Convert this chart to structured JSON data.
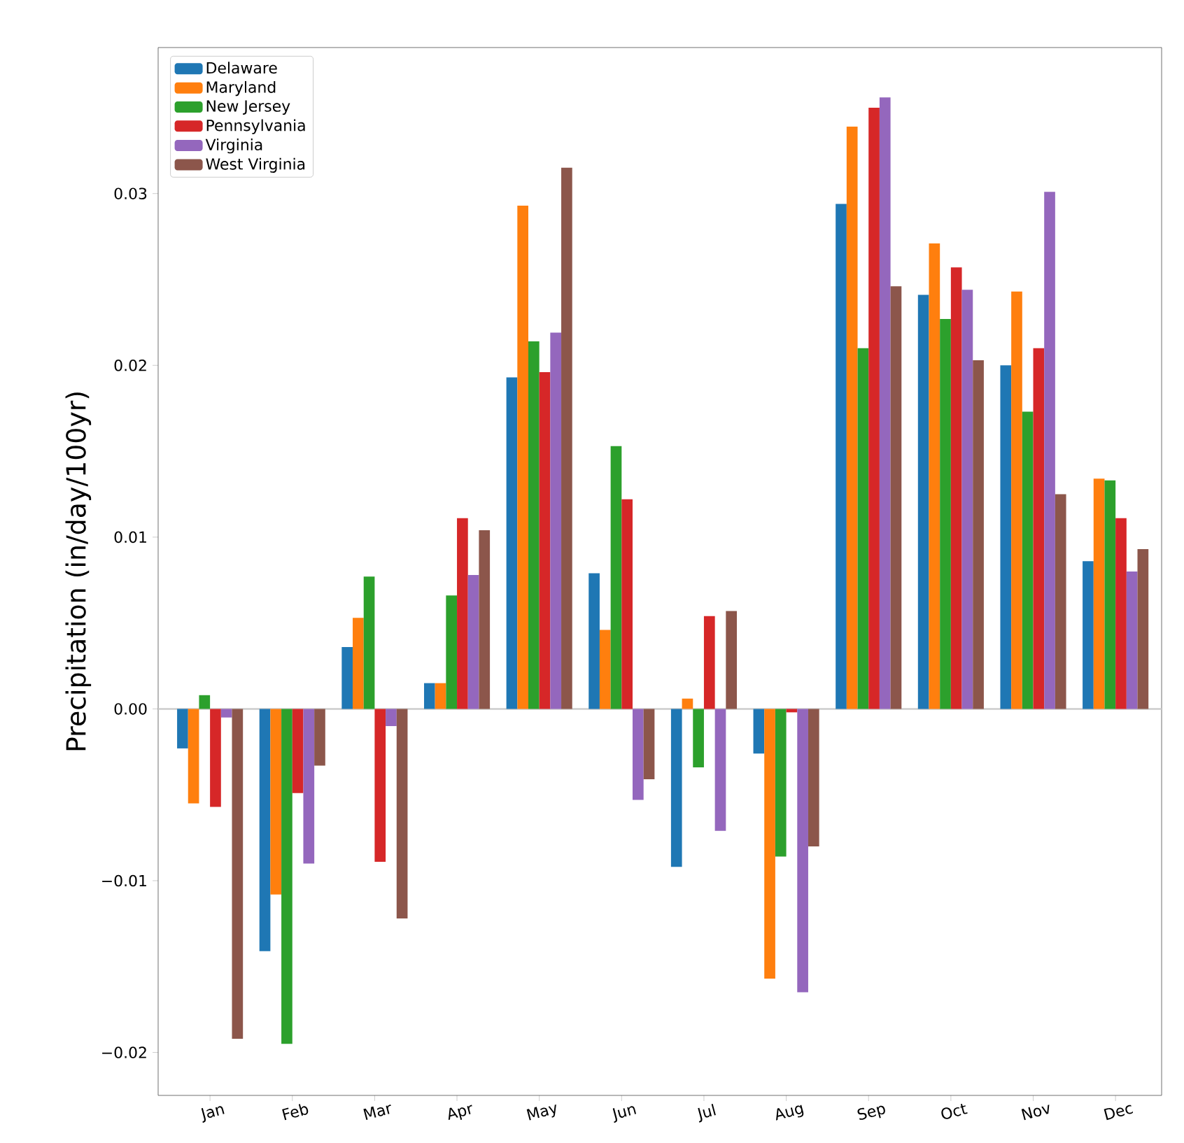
{
  "chart_data": {
    "type": "bar",
    "ylabel": "Precipitation (in/day/100yr)",
    "categories": [
      "Jan",
      "Feb",
      "Mar",
      "Apr",
      "May",
      "Jun",
      "Jul",
      "Aug",
      "Sep",
      "Oct",
      "Nov",
      "Dec"
    ],
    "series": [
      {
        "name": "Delaware",
        "color": "#1f77b4",
        "values": [
          -0.0023,
          -0.0141,
          0.0036,
          0.0015,
          0.0193,
          0.0079,
          -0.0092,
          -0.0026,
          0.0294,
          0.0241,
          0.02,
          0.0086
        ]
      },
      {
        "name": "Maryland",
        "color": "#ff7f0e",
        "values": [
          -0.0055,
          -0.0108,
          0.0053,
          0.0015,
          0.0293,
          0.0046,
          0.0006,
          -0.0157,
          0.0339,
          0.0271,
          0.0243,
          0.0134
        ]
      },
      {
        "name": "New Jersey",
        "color": "#2ca02c",
        "values": [
          0.0008,
          -0.0195,
          0.0077,
          0.0066,
          0.0214,
          0.0153,
          -0.0034,
          -0.0086,
          0.021,
          0.0227,
          0.0173,
          0.0133
        ]
      },
      {
        "name": "Pennsylvania",
        "color": "#d62728",
        "values": [
          -0.0057,
          -0.0049,
          -0.0089,
          0.0111,
          0.0196,
          0.0122,
          0.0054,
          -0.0002,
          0.035,
          0.0257,
          0.021,
          0.0111
        ]
      },
      {
        "name": "Virginia",
        "color": "#9467bd",
        "values": [
          -0.0005,
          -0.009,
          -0.001,
          0.0078,
          0.0219,
          -0.0053,
          -0.0071,
          -0.0165,
          0.0356,
          0.0244,
          0.0301,
          0.008
        ]
      },
      {
        "name": "West Virginia",
        "color": "#8c564b",
        "values": [
          -0.0192,
          -0.0033,
          -0.0122,
          0.0104,
          0.0315,
          -0.0041,
          0.0057,
          -0.008,
          0.0246,
          0.0203,
          0.0125,
          0.0093
        ]
      }
    ],
    "ylim": [
      -0.0225,
      0.0385
    ],
    "yticks": [
      {
        "value": -0.02,
        "label": "−0.02"
      },
      {
        "value": -0.01,
        "label": "−0.01"
      },
      {
        "value": 0,
        "label": "0.00"
      },
      {
        "value": 0.01,
        "label": "0.01"
      },
      {
        "value": 0.02,
        "label": "0.02"
      },
      {
        "value": 0.03,
        "label": "0.03"
      }
    ],
    "ref_lines": [
      {
        "axis": "y",
        "value": 0,
        "color": "#cccccc"
      }
    ],
    "legend": "top left"
  }
}
